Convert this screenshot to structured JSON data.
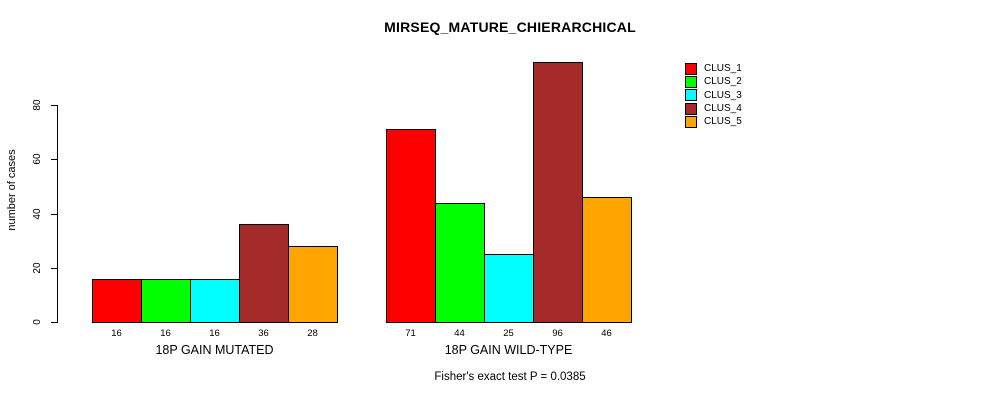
{
  "chart_data": {
    "type": "bar",
    "title": "MIRSEQ_MATURE_CHIERARCHICAL",
    "ylabel": "number of cases",
    "xlabel": "",
    "yticks": [
      0,
      20,
      40,
      60,
      80
    ],
    "ylim": [
      0,
      96
    ],
    "grid": false,
    "legend_position": "right-inside",
    "categories": [
      "18P GAIN MUTATED",
      "18P GAIN WILD-TYPE"
    ],
    "series": [
      {
        "name": "CLUS_1",
        "color": "#FF0000",
        "values": [
          16,
          71
        ]
      },
      {
        "name": "CLUS_2",
        "color": "#00FF00",
        "values": [
          16,
          44
        ]
      },
      {
        "name": "CLUS_3",
        "color": "#00FFFF",
        "values": [
          16,
          25
        ]
      },
      {
        "name": "CLUS_4",
        "color": "#A52A2A",
        "values": [
          36,
          96
        ]
      },
      {
        "name": "CLUS_5",
        "color": "#FFA500",
        "values": [
          28,
          46
        ]
      }
    ],
    "groups": [
      {
        "label": "18P GAIN MUTATED",
        "values": [
          16,
          16,
          16,
          36,
          28
        ]
      },
      {
        "label": "18P GAIN WILD-TYPE",
        "values": [
          71,
          44,
          25,
          96,
          46
        ]
      }
    ],
    "annotation": "Fisher's exact test P = 0.0385",
    "axis_color": "#000000",
    "background_color": "#FFFFFF"
  }
}
